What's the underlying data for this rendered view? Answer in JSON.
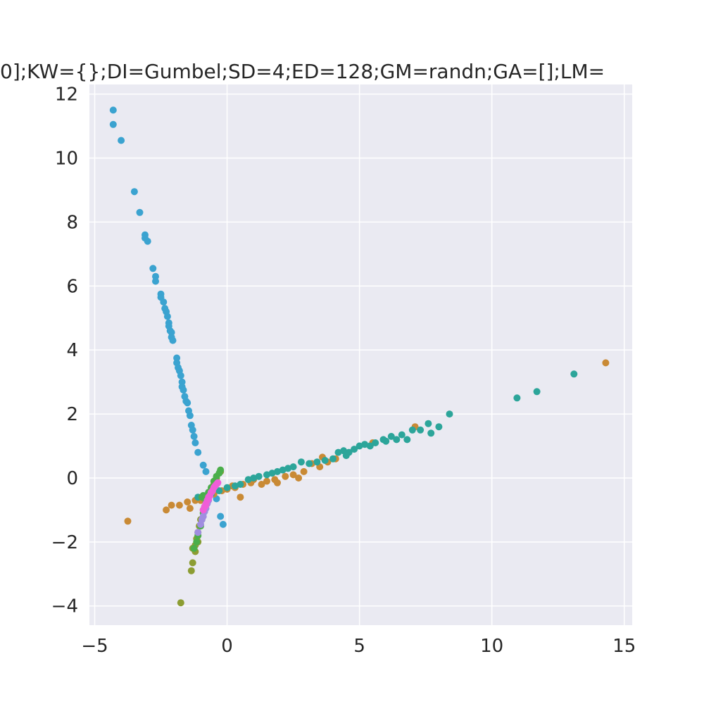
{
  "chart_data": {
    "type": "scatter",
    "title": "0];KW={};DI=Gumbel;SD=4;ED=128;GM=randn;GA=[];LM=",
    "xlabel": "",
    "ylabel": "",
    "xlim": [
      -5.2,
      15.3
    ],
    "ylim": [
      -4.6,
      12.3
    ],
    "x_ticks": [
      -5,
      0,
      5,
      10,
      15
    ],
    "x_tick_labels": [
      "−5",
      "0",
      "5",
      "10",
      "15"
    ],
    "y_ticks": [
      -4,
      -2,
      0,
      2,
      4,
      6,
      8,
      10,
      12
    ],
    "y_tick_labels": [
      "−4",
      "−2",
      "0",
      "2",
      "4",
      "6",
      "8",
      "10",
      "12"
    ],
    "grid": true,
    "background": "#eaeaf2",
    "series": [
      {
        "color": "#3ba3d0",
        "points": [
          [
            -4.3,
            11.5
          ],
          [
            -4.3,
            11.05
          ],
          [
            -4.0,
            10.55
          ],
          [
            -3.5,
            8.95
          ],
          [
            -3.3,
            8.3
          ],
          [
            -3.1,
            7.6
          ],
          [
            -3.1,
            7.5
          ],
          [
            -3.0,
            7.4
          ],
          [
            -2.8,
            6.55
          ],
          [
            -2.7,
            6.3
          ],
          [
            -2.7,
            6.15
          ],
          [
            -2.5,
            5.75
          ],
          [
            -2.5,
            5.65
          ],
          [
            -2.4,
            5.5
          ],
          [
            -2.35,
            5.3
          ],
          [
            -2.3,
            5.2
          ],
          [
            -2.25,
            5.05
          ],
          [
            -2.2,
            4.85
          ],
          [
            -2.2,
            4.75
          ],
          [
            -2.15,
            4.6
          ],
          [
            -2.1,
            4.55
          ],
          [
            -2.1,
            4.4
          ],
          [
            -2.05,
            4.3
          ],
          [
            -1.9,
            3.75
          ],
          [
            -1.9,
            3.6
          ],
          [
            -1.85,
            3.45
          ],
          [
            -1.8,
            3.35
          ],
          [
            -1.75,
            3.2
          ],
          [
            -1.7,
            3.0
          ],
          [
            -1.7,
            2.85
          ],
          [
            -1.65,
            2.75
          ],
          [
            -1.6,
            2.55
          ],
          [
            -1.55,
            2.4
          ],
          [
            -1.5,
            2.35
          ],
          [
            -1.45,
            2.1
          ],
          [
            -1.4,
            1.95
          ],
          [
            -1.35,
            1.65
          ],
          [
            -1.3,
            1.5
          ],
          [
            -1.25,
            1.3
          ],
          [
            -1.2,
            1.1
          ],
          [
            -1.1,
            0.8
          ],
          [
            -0.9,
            0.4
          ],
          [
            -0.8,
            0.2
          ],
          [
            -0.4,
            -0.65
          ],
          [
            -0.25,
            -1.2
          ],
          [
            -0.15,
            -1.45
          ]
        ]
      },
      {
        "color": "#c98a35",
        "points": [
          [
            14.3,
            3.6
          ],
          [
            -3.75,
            -1.35
          ],
          [
            -2.3,
            -1.0
          ],
          [
            -2.1,
            -0.85
          ],
          [
            -1.8,
            -0.85
          ],
          [
            -1.5,
            -0.75
          ],
          [
            -1.4,
            -0.95
          ],
          [
            -1.2,
            -0.7
          ],
          [
            -1.0,
            -0.7
          ],
          [
            -0.8,
            -0.6
          ],
          [
            -0.5,
            -0.5
          ],
          [
            0.0,
            -0.35
          ],
          [
            0.3,
            -0.3
          ],
          [
            0.5,
            -0.6
          ],
          [
            0.6,
            -0.2
          ],
          [
            0.9,
            -0.15
          ],
          [
            1.3,
            -0.2
          ],
          [
            1.5,
            -0.1
          ],
          [
            1.8,
            -0.05
          ],
          [
            1.9,
            -0.15
          ],
          [
            2.2,
            0.05
          ],
          [
            2.5,
            0.1
          ],
          [
            2.7,
            0.0
          ],
          [
            2.9,
            0.2
          ],
          [
            3.2,
            0.45
          ],
          [
            3.5,
            0.35
          ],
          [
            3.6,
            0.65
          ],
          [
            4.1,
            0.6
          ],
          [
            5.5,
            1.1
          ],
          [
            7.1,
            1.6
          ],
          [
            -0.2,
            -0.4
          ],
          [
            0.2,
            -0.25
          ],
          [
            1.0,
            -0.05
          ],
          [
            3.8,
            0.5
          ]
        ]
      },
      {
        "color": "#2ca59a",
        "points": [
          [
            13.1,
            3.25
          ],
          [
            11.7,
            2.7
          ],
          [
            10.95,
            2.5
          ],
          [
            8.4,
            2.0
          ],
          [
            7.6,
            1.7
          ],
          [
            8.0,
            1.6
          ],
          [
            7.3,
            1.5
          ],
          [
            7.7,
            1.4
          ],
          [
            7.0,
            1.5
          ],
          [
            6.8,
            1.2
          ],
          [
            6.6,
            1.35
          ],
          [
            6.4,
            1.2
          ],
          [
            6.2,
            1.3
          ],
          [
            5.9,
            1.2
          ],
          [
            5.6,
            1.1
          ],
          [
            5.4,
            1.0
          ],
          [
            5.2,
            1.05
          ],
          [
            5.0,
            1.0
          ],
          [
            4.8,
            0.9
          ],
          [
            4.6,
            0.8
          ],
          [
            4.4,
            0.85
          ],
          [
            4.2,
            0.8
          ],
          [
            4.0,
            0.6
          ],
          [
            3.7,
            0.55
          ],
          [
            3.4,
            0.5
          ],
          [
            3.1,
            0.45
          ],
          [
            2.8,
            0.5
          ],
          [
            2.5,
            0.35
          ],
          [
            2.3,
            0.3
          ],
          [
            2.1,
            0.25
          ],
          [
            1.9,
            0.2
          ],
          [
            1.7,
            0.15
          ],
          [
            1.5,
            0.1
          ],
          [
            1.2,
            0.05
          ],
          [
            1.0,
            0.0
          ],
          [
            0.8,
            -0.05
          ],
          [
            0.5,
            -0.2
          ],
          [
            0.3,
            -0.25
          ],
          [
            0.0,
            -0.3
          ],
          [
            -0.3,
            -0.4
          ],
          [
            -0.6,
            -0.5
          ],
          [
            -0.9,
            -0.55
          ],
          [
            -1.1,
            -0.6
          ],
          [
            4.5,
            0.7
          ],
          [
            6.0,
            1.15
          ]
        ]
      },
      {
        "color": "#8c9d33",
        "points": [
          [
            -1.75,
            -3.9
          ],
          [
            -1.35,
            -2.9
          ],
          [
            -1.3,
            -2.65
          ],
          [
            -1.3,
            -2.2
          ],
          [
            -1.2,
            -2.1
          ],
          [
            -1.15,
            -1.9
          ],
          [
            -1.1,
            -1.7
          ],
          [
            -1.05,
            -1.5
          ],
          [
            -1.0,
            -1.3
          ],
          [
            -0.9,
            -1.0
          ],
          [
            -0.8,
            -0.7
          ],
          [
            -0.6,
            -0.4
          ],
          [
            -0.5,
            -0.2
          ],
          [
            -0.4,
            0.0
          ],
          [
            -0.25,
            0.2
          ],
          [
            -1.2,
            -2.3
          ],
          [
            -1.1,
            -2.0
          ]
        ]
      },
      {
        "color": "#4bae4a",
        "points": [
          [
            -1.25,
            -2.2
          ],
          [
            -1.1,
            -1.8
          ],
          [
            -1.0,
            -1.5
          ],
          [
            -0.95,
            -1.3
          ],
          [
            -0.9,
            -1.1
          ],
          [
            -0.85,
            -0.9
          ],
          [
            -0.8,
            -0.75
          ],
          [
            -0.75,
            -0.55
          ],
          [
            -0.7,
            -0.45
          ],
          [
            -0.6,
            -0.3
          ],
          [
            -0.5,
            -0.1
          ],
          [
            -0.4,
            0.05
          ],
          [
            -0.3,
            0.15
          ],
          [
            -0.25,
            0.25
          ],
          [
            -1.15,
            -2.0
          ],
          [
            -0.95,
            -0.6
          ],
          [
            -0.9,
            -0.55
          ]
        ]
      },
      {
        "color": "#a08de0",
        "points": [
          [
            -1.1,
            -1.7
          ],
          [
            -1.0,
            -1.45
          ],
          [
            -0.95,
            -1.3
          ],
          [
            -0.9,
            -1.2
          ],
          [
            -0.85,
            -1.05
          ],
          [
            -0.8,
            -0.95
          ],
          [
            -0.75,
            -0.8
          ],
          [
            -0.7,
            -0.7
          ],
          [
            -0.65,
            -0.55
          ],
          [
            -0.6,
            -0.45
          ]
        ]
      },
      {
        "color": "#ef5ed8",
        "points": [
          [
            -0.9,
            -1.0
          ],
          [
            -0.85,
            -0.9
          ],
          [
            -0.8,
            -0.8
          ],
          [
            -0.75,
            -0.7
          ],
          [
            -0.7,
            -0.6
          ],
          [
            -0.65,
            -0.55
          ],
          [
            -0.6,
            -0.45
          ],
          [
            -0.55,
            -0.4
          ],
          [
            -0.5,
            -0.3
          ],
          [
            -0.45,
            -0.25
          ],
          [
            -0.4,
            -0.2
          ],
          [
            -0.35,
            -0.15
          ],
          [
            -0.8,
            -0.85
          ],
          [
            -0.7,
            -0.65
          ]
        ]
      }
    ]
  }
}
